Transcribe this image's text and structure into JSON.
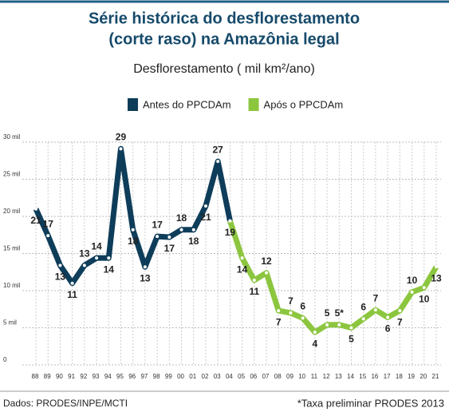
{
  "chart_data": {
    "type": "line",
    "title_lines": [
      "Série histórica do desflorestamento",
      "(corte raso) na Amazônia legal"
    ],
    "subtitle": "Desflorestamento ( mil km²/ano)",
    "source": "Dados: PRODES/INPE/MCTI",
    "footnote": "*Taxa preliminar PRODES 2013",
    "categories": [
      "88",
      "89",
      "90",
      "91",
      "92",
      "93",
      "94",
      "95",
      "96",
      "97",
      "98",
      "99",
      "00",
      "01",
      "02",
      "03",
      "04",
      "05",
      "06",
      "07",
      "08",
      "09",
      "10",
      "11",
      "12",
      "13",
      "14",
      "15",
      "16",
      "17",
      "18",
      "19",
      "20",
      "21"
    ],
    "series": [
      {
        "name": "Antes do PPCDAm",
        "color": "#0e3d5a",
        "values": [
          21.0,
          17.4,
          13.4,
          11.0,
          13.4,
          14.4,
          14.4,
          29.1,
          18.2,
          13.2,
          17.3,
          17.2,
          18.2,
          18.2,
          21.4,
          27.4,
          19.4,
          null,
          null,
          null,
          null,
          null,
          null,
          null,
          null,
          null,
          null,
          null,
          null,
          null,
          null,
          null,
          null,
          null
        ],
        "value_labels": [
          "21",
          "17",
          "13",
          "11",
          "13",
          "14",
          "14",
          "29",
          "18",
          "13",
          "17",
          "17",
          "18",
          "18",
          "21",
          "27",
          null,
          null,
          null,
          null,
          null,
          null,
          null,
          null,
          null,
          null,
          null,
          null,
          null,
          null,
          null,
          null,
          null,
          null
        ]
      },
      {
        "name": "Após o PPCDAm",
        "color": "#8cc63f",
        "values": [
          null,
          null,
          null,
          null,
          null,
          null,
          null,
          null,
          null,
          null,
          null,
          null,
          null,
          null,
          null,
          null,
          19.4,
          14.4,
          11.4,
          12.4,
          7.3,
          7.0,
          6.3,
          4.4,
          5.4,
          5.4,
          5.0,
          6.2,
          7.4,
          6.4,
          7.3,
          9.8,
          10.4,
          13.2
        ],
        "value_labels": [
          null,
          null,
          null,
          null,
          null,
          null,
          null,
          null,
          null,
          null,
          null,
          null,
          null,
          null,
          null,
          null,
          "19",
          "14",
          "11",
          "12",
          "7",
          "7",
          "6",
          "4",
          "5",
          "5*",
          "5",
          "6",
          "7",
          "6",
          "7",
          "10",
          "10",
          "13"
        ]
      }
    ],
    "ylim": [
      0,
      30
    ],
    "yticks": [
      0,
      {
        "value": 5,
        "label": "5 mil"
      },
      {
        "value": 10,
        "label": "10 mil"
      },
      {
        "value": 15,
        "label": "15 mil"
      },
      {
        "value": 20,
        "label": "20 mil"
      },
      {
        "value": 25,
        "label": "25 mil"
      },
      {
        "value": 30,
        "label": "30 mil"
      }
    ],
    "grid": true,
    "legend": "top"
  }
}
